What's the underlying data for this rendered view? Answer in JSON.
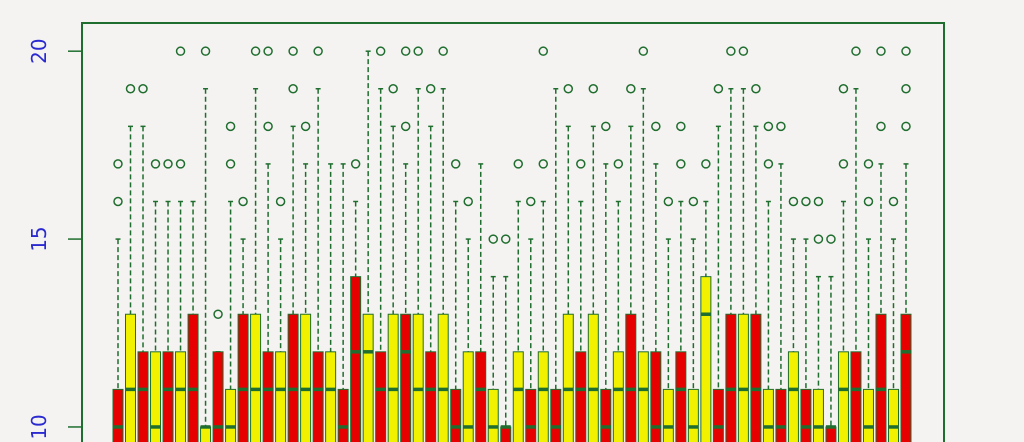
{
  "chart_data": {
    "type": "boxplot",
    "ylim": [
      9.6,
      20.75
    ],
    "yticks": [
      10,
      15,
      20
    ],
    "boxes": {
      "q3": [
        11,
        13,
        12,
        12,
        12,
        12,
        13,
        10,
        12,
        11,
        13,
        13,
        12,
        12,
        13,
        13,
        12,
        12,
        11,
        14,
        13,
        12,
        13,
        13,
        13,
        12,
        13,
        11,
        12,
        12,
        11,
        10,
        12,
        11,
        12,
        11,
        13,
        12,
        13,
        11,
        12,
        13,
        12,
        12,
        11,
        12,
        11,
        14,
        11,
        13,
        13,
        13,
        11,
        11,
        12,
        11,
        11,
        10,
        12,
        12,
        11,
        13,
        11,
        13
      ],
      "median": [
        10,
        11,
        11,
        10,
        11,
        11,
        11,
        10,
        10,
        10,
        11,
        11,
        11,
        11,
        11,
        11,
        11,
        11,
        10,
        12,
        12,
        11,
        11,
        12,
        11,
        11,
        11,
        10,
        10,
        11,
        10,
        10,
        11,
        10,
        11,
        10,
        11,
        11,
        11,
        10,
        11,
        11,
        11,
        10,
        10,
        11,
        10,
        13,
        10,
        11,
        11,
        11,
        10,
        10,
        11,
        10,
        10,
        10,
        11,
        11,
        10,
        11,
        10,
        12
      ],
      "whisker_high": [
        15,
        18,
        18,
        16,
        16,
        16,
        16,
        19,
        12,
        16,
        15,
        19,
        17,
        15,
        18,
        17,
        19,
        17,
        17,
        16,
        20,
        19,
        18,
        17,
        19,
        18,
        19,
        16,
        15,
        17,
        14,
        14,
        16,
        15,
        16,
        19,
        18,
        16,
        18,
        17,
        16,
        18,
        19,
        17,
        15,
        16,
        15,
        16,
        18,
        19,
        19,
        18,
        16,
        17,
        15,
        15,
        14,
        14,
        16,
        19,
        15,
        17,
        15,
        17
      ],
      "outliers": [
        [
          16,
          17
        ],
        [
          19
        ],
        [
          19
        ],
        [
          17
        ],
        [
          17
        ],
        [
          17,
          20
        ],
        [],
        [
          20
        ],
        [
          13
        ],
        [
          17,
          18
        ],
        [
          16
        ],
        [
          20
        ],
        [
          18,
          20
        ],
        [
          16
        ],
        [
          19,
          20
        ],
        [
          18
        ],
        [
          20
        ],
        [],
        [],
        [
          17
        ],
        [],
        [
          20
        ],
        [
          19
        ],
        [
          18,
          20
        ],
        [
          20
        ],
        [
          19
        ],
        [
          20
        ],
        [
          17
        ],
        [
          16
        ],
        [],
        [
          15
        ],
        [
          15
        ],
        [
          17
        ],
        [
          16
        ],
        [
          17,
          20
        ],
        [],
        [
          19
        ],
        [
          17
        ],
        [
          19
        ],
        [
          18
        ],
        [
          17
        ],
        [
          19
        ],
        [
          20
        ],
        [
          18
        ],
        [
          16
        ],
        [
          17,
          18
        ],
        [
          16
        ],
        [
          17
        ],
        [
          19
        ],
        [
          20
        ],
        [
          20
        ],
        [
          19
        ],
        [
          17,
          18
        ],
        [
          18
        ],
        [
          16
        ],
        [
          16
        ],
        [
          15,
          16
        ],
        [
          15
        ],
        [
          17,
          19
        ],
        [
          20
        ],
        [
          16,
          17
        ],
        [
          18,
          20
        ],
        [
          16
        ],
        [
          18,
          19,
          20
        ]
      ],
      "colors": [
        "#e60000",
        "#f2f200",
        "#e60000",
        "#f2f200",
        "#e60000",
        "#f2f200",
        "#e60000",
        "#f2f200",
        "#e60000",
        "#f2f200",
        "#e60000",
        "#f2f200",
        "#e60000",
        "#f2f200",
        "#e60000",
        "#f2f200",
        "#e60000",
        "#f2f200",
        "#e60000",
        "#e60000",
        "#f2f200",
        "#e60000",
        "#f2f200",
        "#e60000",
        "#f2f200",
        "#e60000",
        "#f2f200",
        "#e60000",
        "#f2f200",
        "#e60000",
        "#f2f200",
        "#e60000",
        "#f2f200",
        "#e60000",
        "#f2f200",
        "#e60000",
        "#f2f200",
        "#e60000",
        "#f2f200",
        "#e60000",
        "#f2f200",
        "#e60000",
        "#f2f200",
        "#e60000",
        "#f2f200",
        "#e60000",
        "#f2f200",
        "#f2f200",
        "#e60000",
        "#e60000",
        "#f2f200",
        "#e60000",
        "#f2f200",
        "#e60000",
        "#f2f200",
        "#e60000",
        "#f2f200",
        "#e60000",
        "#f2f200",
        "#e60000",
        "#f2f200",
        "#e60000",
        "#f2f200",
        "#e60000"
      ]
    }
  }
}
